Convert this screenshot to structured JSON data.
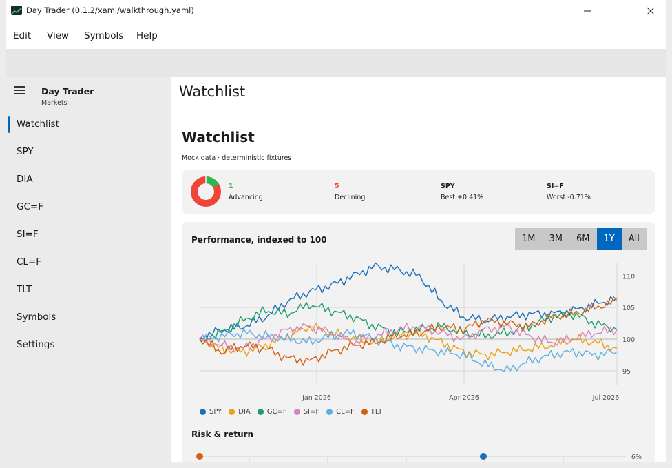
{
  "window": {
    "title": "Day Trader (0.1.2/xaml/walkthrough.yaml)"
  },
  "menu": [
    "Edit",
    "View",
    "Symbols",
    "Help"
  ],
  "sidebar": {
    "brand_title": "Day Trader",
    "brand_subtitle": "Markets",
    "items": [
      "Watchlist",
      "SPY",
      "DIA",
      "GC=F",
      "SI=F",
      "CL=F",
      "TLT",
      "Symbols",
      "Settings"
    ],
    "selected": "Watchlist"
  },
  "page": {
    "header": "Watchlist",
    "heading": "Watchlist",
    "subtitle": "Mock data · deterministic fixtures"
  },
  "summary": {
    "advancing_count": "1",
    "advancing_label": "Advancing",
    "declining_count": "5",
    "declining_label": "Declining",
    "best_symbol": "SPY",
    "best_label": "Best +0.41%",
    "worst_symbol": "SI=F",
    "worst_label": "Worst -0.71%",
    "colors": {
      "advancing": "#2db84c",
      "declining": "#f04438"
    }
  },
  "chart": {
    "title": "Performance, indexed to 100",
    "ranges": [
      "1M",
      "3M",
      "6M",
      "1Y",
      "All"
    ],
    "active_range": "1Y",
    "accent": "#0067c0"
  },
  "chart_data": {
    "type": "line",
    "x_ticks": [
      "Jan 2026",
      "Apr 2026",
      "Jul 2026"
    ],
    "y_ticks": [
      95,
      100,
      105,
      110
    ],
    "ylim": [
      94,
      112
    ],
    "grid": true,
    "legend": "bottom-left",
    "series": [
      {
        "name": "SPY",
        "color": "#1f6fb4",
        "values": [
          100,
          101.5,
          102,
          103.5,
          106,
          107.5,
          108.5,
          110,
          111.5,
          111,
          110,
          106,
          103.5,
          103,
          103.5,
          104,
          104,
          104.5,
          105.5,
          106.5
        ]
      },
      {
        "name": "DIA",
        "color": "#e8a317",
        "values": [
          100,
          98.5,
          98,
          99,
          100.5,
          102,
          101,
          100,
          99.5,
          100.5,
          101,
          99.5,
          98,
          97.5,
          98,
          98.5,
          99,
          100,
          99.5,
          98.5
        ]
      },
      {
        "name": "GC=F",
        "color": "#1a9e6a",
        "values": [
          100,
          101,
          103,
          104.5,
          104,
          105.5,
          104.5,
          103.5,
          102,
          101,
          101.5,
          102,
          101,
          100.5,
          101,
          102,
          103.5,
          104,
          102.5,
          101.5
        ]
      },
      {
        "name": "SI=F",
        "color": "#d783bd",
        "values": [
          100,
          99,
          98.5,
          100,
          101.5,
          102,
          101,
          99.5,
          100.5,
          101.5,
          102,
          101,
          100,
          101.5,
          102,
          100.5,
          99.5,
          100,
          101,
          101.5
        ]
      },
      {
        "name": "CL=F",
        "color": "#5dafe3",
        "values": [
          100,
          100.5,
          101,
          100.5,
          100,
          99.5,
          100.5,
          101,
          100,
          99,
          98.5,
          98,
          97.5,
          96,
          95,
          96.5,
          97.5,
          98,
          97.5,
          98
        ]
      },
      {
        "name": "TLT",
        "color": "#d45f11",
        "values": [
          100,
          98,
          99,
          98.5,
          97,
          96.5,
          98,
          99,
          99.5,
          100.5,
          101,
          102,
          101.5,
          103,
          102.5,
          102,
          103.5,
          104,
          105,
          106
        ]
      }
    ]
  },
  "risk": {
    "title": "Risk & return",
    "y_tick": "6%"
  }
}
